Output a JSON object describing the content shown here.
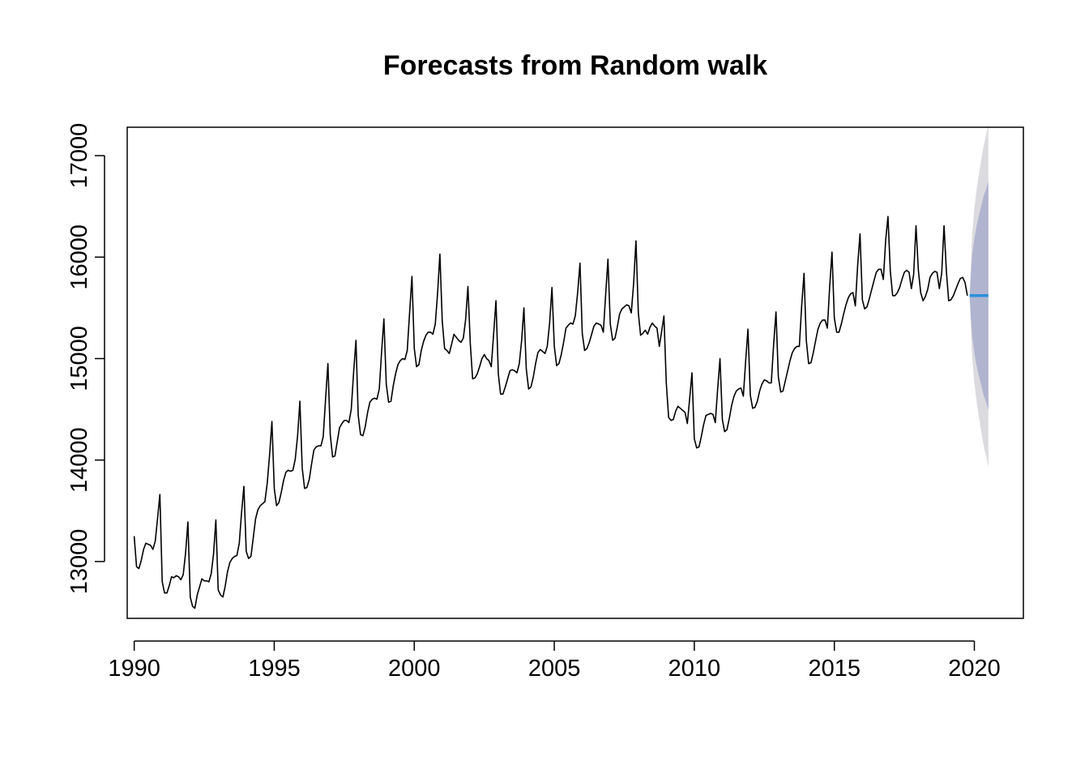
{
  "chart_data": {
    "type": "line",
    "title": "Forecasts from Random walk",
    "xlabel": "",
    "ylabel": "",
    "xlim": [
      1989.75,
      2021.75
    ],
    "ylim": [
      12440,
      17280
    ],
    "x_ticks": [
      1990,
      1995,
      2000,
      2005,
      2010,
      2015,
      2020
    ],
    "y_ticks": [
      13000,
      14000,
      15000,
      16000,
      17000
    ],
    "x_tick_labels": [
      "1990",
      "1995",
      "2000",
      "2005",
      "2010",
      "2015",
      "2020"
    ],
    "y_tick_labels": [
      "13000",
      "14000",
      "15000",
      "16000",
      "17000"
    ],
    "grid": false,
    "legend": "none",
    "series": [
      {
        "role": "observed",
        "start": 1990.0,
        "frequency": 12,
        "color": "#000000",
        "values": [
          13250,
          12950,
          12930,
          13010,
          13120,
          13180,
          13170,
          13160,
          13120,
          13200,
          13420,
          13660,
          12800,
          12690,
          12690,
          12760,
          12850,
          12840,
          12860,
          12850,
          12820,
          12870,
          13080,
          13390,
          12650,
          12560,
          12540,
          12670,
          12750,
          12830,
          12810,
          12810,
          12800,
          12880,
          13080,
          13410,
          12720,
          12670,
          12650,
          12760,
          12900,
          12990,
          13030,
          13050,
          13060,
          13180,
          13480,
          13740,
          13100,
          13030,
          13050,
          13230,
          13420,
          13510,
          13550,
          13570,
          13590,
          13770,
          14050,
          14380,
          13720,
          13550,
          13580,
          13680,
          13800,
          13880,
          13900,
          13890,
          13900,
          14010,
          14240,
          14580,
          13920,
          13720,
          13730,
          13810,
          13960,
          14100,
          14130,
          14140,
          14140,
          14230,
          14600,
          14950,
          14250,
          14030,
          14040,
          14180,
          14320,
          14360,
          14390,
          14390,
          14370,
          14500,
          14860,
          15180,
          14440,
          14250,
          14240,
          14330,
          14470,
          14570,
          14600,
          14610,
          14600,
          14700,
          15060,
          15390,
          14750,
          14570,
          14580,
          14730,
          14850,
          14940,
          14980,
          15000,
          14990,
          15080,
          15450,
          15810,
          15100,
          14920,
          14940,
          15080,
          15170,
          15230,
          15260,
          15260,
          15240,
          15340,
          15650,
          16030,
          15370,
          15100,
          15080,
          15050,
          15140,
          15240,
          15210,
          15180,
          15160,
          15200,
          15380,
          15710,
          15150,
          14800,
          14810,
          14850,
          14920,
          15000,
          15040,
          15000,
          14980,
          14920,
          15240,
          15570,
          14850,
          14650,
          14650,
          14720,
          14800,
          14880,
          14890,
          14880,
          14860,
          14950,
          15180,
          15500,
          14900,
          14700,
          14720,
          14820,
          14950,
          15060,
          15090,
          15070,
          15050,
          15120,
          15350,
          15700,
          15120,
          14930,
          14950,
          15040,
          15160,
          15300,
          15330,
          15350,
          15340,
          15420,
          15650,
          15940,
          15250,
          15080,
          15100,
          15160,
          15240,
          15320,
          15350,
          15340,
          15330,
          15260,
          15620,
          15980,
          15340,
          15180,
          15200,
          15310,
          15440,
          15490,
          15510,
          15530,
          15520,
          15450,
          15740,
          16160,
          15450,
          15230,
          15250,
          15280,
          15240,
          15310,
          15350,
          15320,
          15300,
          15120,
          15270,
          15420,
          14760,
          14420,
          14390,
          14400,
          14480,
          14530,
          14510,
          14490,
          14470,
          14360,
          14600,
          14860,
          14210,
          14120,
          14130,
          14230,
          14350,
          14440,
          14450,
          14460,
          14450,
          14370,
          14700,
          15000,
          14400,
          14280,
          14300,
          14410,
          14540,
          14630,
          14680,
          14700,
          14710,
          14630,
          14980,
          15290,
          14640,
          14510,
          14520,
          14580,
          14680,
          14750,
          14790,
          14780,
          14760,
          14760,
          15140,
          15460,
          14820,
          14670,
          14680,
          14780,
          14880,
          14980,
          15060,
          15100,
          15120,
          15120,
          15520,
          15840,
          15180,
          14950,
          14960,
          15060,
          15180,
          15290,
          15350,
          15380,
          15380,
          15300,
          15700,
          16050,
          15400,
          15260,
          15260,
          15340,
          15440,
          15530,
          15600,
          15640,
          15650,
          15520,
          15920,
          16230,
          15580,
          15490,
          15510,
          15590,
          15680,
          15770,
          15850,
          15880,
          15880,
          15780,
          16170,
          16400,
          15860,
          15620,
          15620,
          15650,
          15700,
          15780,
          15850,
          15870,
          15850,
          15690,
          15830,
          16310,
          15870,
          15650,
          15570,
          15610,
          15680,
          15800,
          15840,
          15860,
          15850,
          15690,
          15840,
          16310,
          15860,
          15570,
          15580,
          15620,
          15680,
          15740,
          15790,
          15800,
          15750,
          15620
        ]
      },
      {
        "role": "point_forecast",
        "color": "#2b8fd8",
        "x": [
          2019.83,
          2020.5
        ],
        "values": [
          15620,
          15620
        ]
      }
    ],
    "intervals": [
      {
        "level": "95%",
        "color": "#dbdbdf",
        "x": [
          2019.83,
          2019.92,
          2020.0,
          2020.08,
          2020.17,
          2020.25,
          2020.33,
          2020.42,
          2020.5
        ],
        "lower": [
          15620,
          15010,
          14760,
          14570,
          14410,
          14270,
          14150,
          14040,
          13930
        ],
        "upper": [
          15620,
          16230,
          16480,
          16670,
          16830,
          16970,
          17090,
          17200,
          17310
        ]
      },
      {
        "level": "80%",
        "color": "#b0b4cf",
        "x": [
          2019.83,
          2019.92,
          2020.0,
          2020.08,
          2020.17,
          2020.25,
          2020.33,
          2020.42,
          2020.5
        ],
        "lower": [
          15620,
          15220,
          15060,
          14930,
          14820,
          14730,
          14640,
          14570,
          14490
        ],
        "upper": [
          15620,
          16020,
          16180,
          16310,
          16420,
          16510,
          16600,
          16670,
          16750
        ]
      }
    ]
  }
}
